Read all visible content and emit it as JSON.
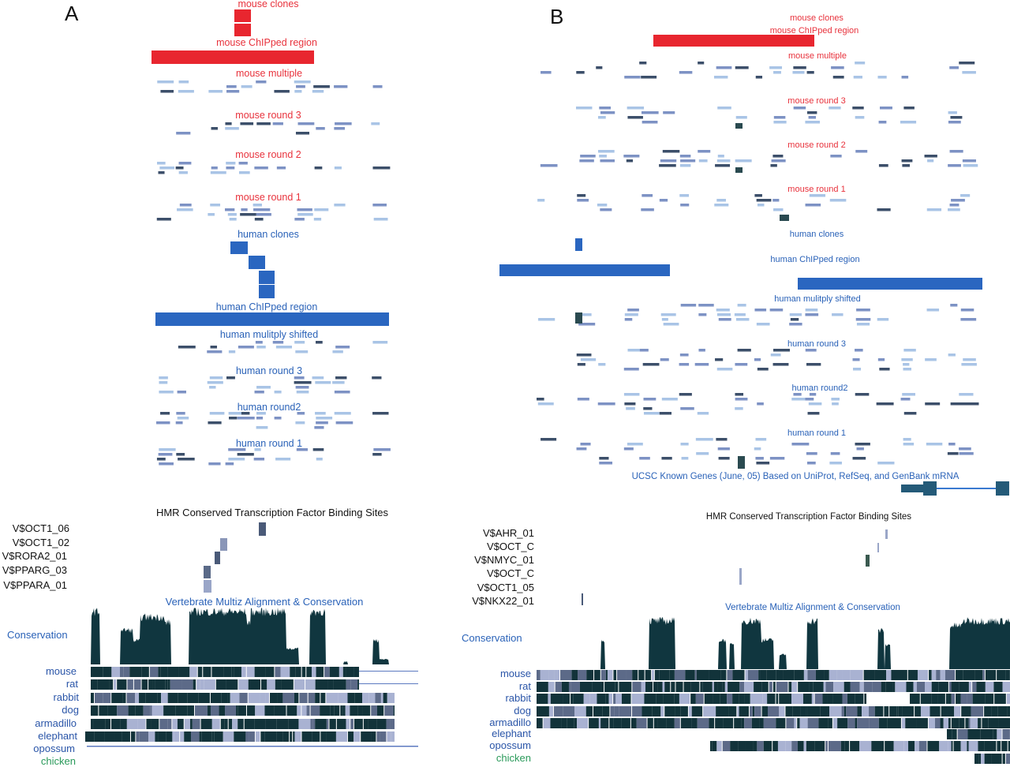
{
  "panels": {
    "a": {
      "letter": "A",
      "tracks": {
        "mouse_clones": "mouse clones",
        "mouse_chipped": "mouse ChIPped region",
        "mouse_multiple": "mouse multiple",
        "mouse_round3": "mouse round 3",
        "mouse_round2": "mouse round 2",
        "mouse_round1": "mouse round 1",
        "human_clones": "human clones",
        "human_chipped": "human ChIPped region",
        "human_shifted": "human mulitply shifted",
        "human_round3": "human round 3",
        "human_round2": "human round2",
        "human_round1": "human round 1"
      },
      "tfbs_title": "HMR Conserved Transcription Factor Binding Sites",
      "tfbs": [
        "V$OCT1_06",
        "V$OCT1_02",
        "V$RORA2_01",
        "V$PPARG_03",
        "V$PPARA_01"
      ],
      "multiz_title": "Vertebrate Multiz Alignment & Conservation",
      "conservation_label": "Conservation",
      "species": [
        "mouse",
        "rat",
        "rabbit",
        "dog",
        "armadillo",
        "elephant",
        "opossum",
        "chicken"
      ]
    },
    "b": {
      "letter": "B",
      "tracks": {
        "mouse_clones": "mouse clones",
        "mouse_chipped": "mouse ChIPped region",
        "mouse_multiple": "mouse multiple",
        "mouse_round3": "mouse round 3",
        "mouse_round2": "mouse round 2",
        "mouse_round1": "mouse round 1",
        "human_clones": "human clones",
        "human_chipped": "human ChIPped region",
        "human_shifted": "human mulitply shifted",
        "human_round3": "human round 3",
        "human_round2": "human round2",
        "human_round1": "human round 1",
        "known_genes": "UCSC Known Genes (June, 05) Based on UniProt, RefSeq, and GenBank mRNA"
      },
      "tfbs_title": "HMR Conserved Transcription Factor Binding Sites",
      "tfbs": [
        "V$AHR_01",
        "V$OCT_C",
        "V$NMYC_01",
        "V$OCT_C",
        "V$OCT1_05",
        "V$NKX22_01"
      ],
      "multiz_title": "Vertebrate Multiz Alignment & Conservation",
      "conservation_label": "Conservation",
      "species": [
        "mouse",
        "rat",
        "rabbit",
        "dog",
        "armadillo",
        "elephant",
        "opossum",
        "chicken"
      ]
    }
  },
  "colors": {
    "mouse": "#e8262f",
    "human": "#2a66c0",
    "conservation": "#10363f",
    "chicken": "#2a9a5a"
  }
}
